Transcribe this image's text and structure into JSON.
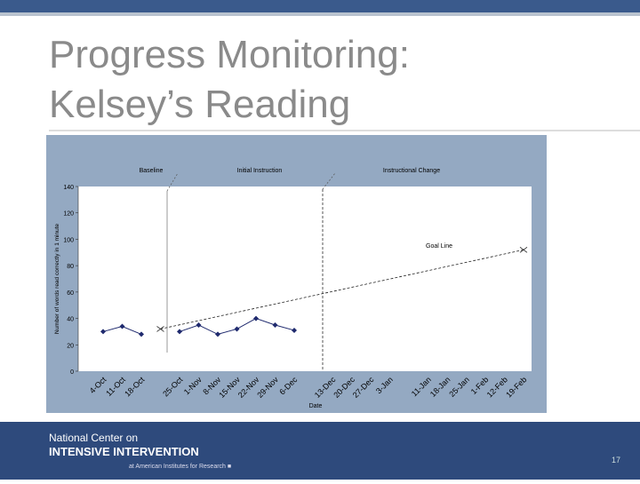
{
  "slide": {
    "title_lines": [
      "Progress Monitoring:",
      "Kelsey’s Reading"
    ],
    "footer": {
      "org_line1": "National Center on",
      "org_line2": "INTENSIVE INTERVENTION",
      "org_line3": "at American Institutes for Research ■"
    },
    "page_number": "17"
  },
  "chart_data": {
    "type": "line",
    "y_label": "Number of words read correctly in 1 minute",
    "x_label": "Date",
    "categories": [
      "4-Oct",
      "11-Oct",
      "18-Oct",
      null,
      "25-Oct",
      "1-Nov",
      "8-Nov",
      "15-Nov",
      "22-Nov",
      "29-Nov",
      "6-Dec",
      null,
      "13-Dec",
      "20-Dec",
      "27-Dec",
      "3-Jan",
      null,
      "11-Jan",
      "18-Jan",
      "25-Jan",
      "1-Feb",
      "12-Feb",
      "19-Feb"
    ],
    "series": [
      {
        "name": "Words read correctly",
        "color": "#1f2a6e",
        "values": [
          30,
          34,
          28,
          null,
          30,
          35,
          28,
          32,
          40,
          35,
          31,
          null,
          null,
          null,
          null,
          null,
          null,
          null,
          null,
          null,
          null,
          null,
          null
        ]
      }
    ],
    "goal_line": {
      "name": "Goal Line",
      "start": 32,
      "end": 92
    },
    "annotations": [
      "Baseline",
      "Initial Instruction",
      "Instructional Change"
    ],
    "ylim": [
      0,
      140
    ],
    "yticks": [
      0,
      20,
      40,
      60,
      80,
      100,
      120,
      140
    ]
  }
}
